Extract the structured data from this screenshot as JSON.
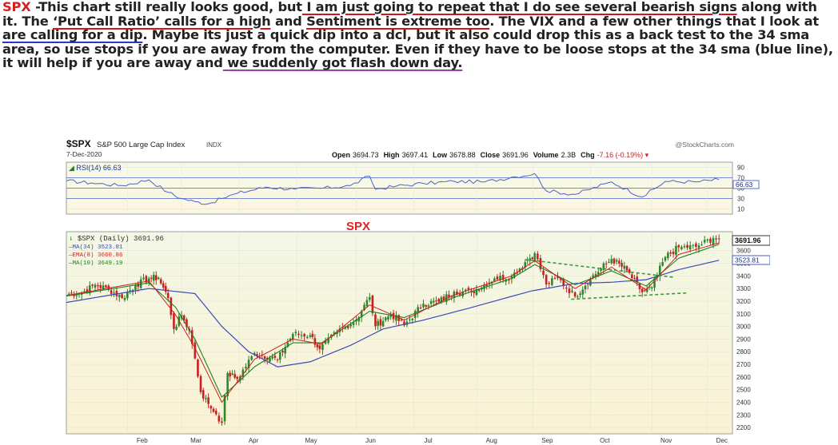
{
  "commentary": {
    "ticker": "SPX",
    "text1": " -This chart still really looks good, but",
    "u1": " I am just going to repeat that I do see several bearish signs",
    "text2": " along with it.  The ",
    "u2": "‘Put Call Ratio’ calls for a high",
    "text3": " and ",
    "u3": "Sentiment is extreme too",
    "text4": ". The VIX and a few other things that I look at ",
    "u4": "are calling for a dip",
    "text5": ".  Maybe its just a quick dip into a dcl, but it also could drop this as a back test to the 34 sma area, so use stops if you are away from the computer. Even if they have to be loose stops at the 34 sma (blue line), it will help if you are away and",
    "u5": " we suddenly got  flash down day."
  },
  "chart_header": {
    "symbol": "$SPX",
    "name": "S&P 500 Large Cap Index",
    "exchange": "INDX",
    "date": "7-Dec-2020",
    "watermark": "@StockCharts.com",
    "open_label": "Open",
    "open": "3694.73",
    "high_label": "High",
    "high": "3697.41",
    "low_label": "Low",
    "low": "3678.88",
    "close_label": "Close",
    "close": "3691.96",
    "volume_label": "Volume",
    "volume": "2.3B",
    "chg_label": "Chg",
    "chg": "-7.16 (-0.19%)"
  },
  "chart_data": [
    {
      "type": "line",
      "panel": "rsi",
      "label": "RSI(14) 66.63",
      "value_tag": "66.63",
      "ylim": [
        0,
        100
      ],
      "yticks": [
        90,
        70,
        50,
        30,
        10
      ],
      "reference_lines": [
        70,
        30
      ],
      "x": [
        "2020-01-02",
        "2020-01-15",
        "2020-01-31",
        "2020-02-14",
        "2020-02-24",
        "2020-03-02",
        "2020-03-09",
        "2020-03-16",
        "2020-03-23",
        "2020-03-31",
        "2020-04-15",
        "2020-04-30",
        "2020-05-15",
        "2020-05-29",
        "2020-06-08",
        "2020-06-11",
        "2020-06-22",
        "2020-07-06",
        "2020-07-22",
        "2020-08-07",
        "2020-08-21",
        "2020-09-02",
        "2020-09-08",
        "2020-09-23",
        "2020-10-12",
        "2020-10-28",
        "2020-11-09",
        "2020-11-25",
        "2020-12-07"
      ],
      "values": [
        64,
        60,
        55,
        66,
        42,
        30,
        24,
        20,
        30,
        40,
        52,
        48,
        50,
        55,
        73,
        48,
        54,
        59,
        63,
        62,
        71,
        78,
        45,
        38,
        62,
        33,
        63,
        62,
        66.63
      ],
      "line_color": "#4a64c8"
    },
    {
      "type": "line",
      "panel": "price",
      "title": "SPX",
      "legend": [
        {
          "name": "$SPX (Daily) 3691.96",
          "color": "#333333"
        },
        {
          "name": "MA(34) 3523.81",
          "color": "#3a4ab8"
        },
        {
          "name": "EMA(8) 3660.86",
          "color": "#d02020"
        },
        {
          "name": "MA(10) 3649.19",
          "color": "#208020"
        }
      ],
      "ylim": [
        2150,
        3750
      ],
      "yticks": [
        3600,
        3500,
        3400,
        3300,
        3200,
        3100,
        3000,
        2900,
        2800,
        2700,
        2600,
        2500,
        2400,
        2300,
        2200
      ],
      "price_tags": [
        "3691.96",
        "3523.81"
      ],
      "x_month_labels": [
        "Feb",
        "Mar",
        "Apr",
        "May",
        "Jun",
        "Jul",
        "Aug",
        "Sep",
        "Oct",
        "Nov",
        "Dec"
      ],
      "x_month_dates": [
        "2020-02-03",
        "2020-03-02",
        "2020-04-01",
        "2020-05-01",
        "2020-06-01",
        "2020-07-01",
        "2020-08-03",
        "2020-09-01",
        "2020-10-01",
        "2020-11-02",
        "2020-12-01"
      ],
      "x_range": [
        "2020-01-02",
        "2020-12-14"
      ],
      "series": [
        {
          "name": "$SPX (Daily) 3691.96",
          "style": "candlestick",
          "x": [
            "2020-01-02",
            "2020-01-10",
            "2020-01-17",
            "2020-01-24",
            "2020-01-31",
            "2020-02-07",
            "2020-02-14",
            "2020-02-19",
            "2020-02-24",
            "2020-02-27",
            "2020-03-02",
            "2020-03-06",
            "2020-03-09",
            "2020-03-12",
            "2020-03-16",
            "2020-03-20",
            "2020-03-23",
            "2020-03-26",
            "2020-03-31",
            "2020-04-09",
            "2020-04-21",
            "2020-04-29",
            "2020-05-08",
            "2020-05-13",
            "2020-05-22",
            "2020-06-01",
            "2020-06-08",
            "2020-06-11",
            "2020-06-19",
            "2020-06-26",
            "2020-07-06",
            "2020-07-14",
            "2020-07-22",
            "2020-07-31",
            "2020-08-12",
            "2020-08-21",
            "2020-08-28",
            "2020-09-02",
            "2020-09-08",
            "2020-09-14",
            "2020-09-23",
            "2020-10-01",
            "2020-10-12",
            "2020-10-20",
            "2020-10-28",
            "2020-11-02",
            "2020-11-09",
            "2020-11-16",
            "2020-11-25",
            "2020-12-04",
            "2020-12-07"
          ],
          "values": [
            3258,
            3265,
            3330,
            3295,
            3225,
            3327,
            3380,
            3386,
            3225,
            2980,
            3090,
            2970,
            2747,
            2480,
            2386,
            2305,
            2237,
            2630,
            2585,
            2790,
            2737,
            2940,
            2930,
            2820,
            2955,
            3055,
            3232,
            3002,
            3098,
            3009,
            3180,
            3197,
            3276,
            3271,
            3380,
            3397,
            3508,
            3580,
            3332,
            3384,
            3237,
            3380,
            3534,
            3443,
            3271,
            3310,
            3550,
            3626,
            3630,
            3699,
            3691.96
          ]
        },
        {
          "name": "MA(34) 3523.81",
          "x": [
            "2020-01-02",
            "2020-02-14",
            "2020-03-09",
            "2020-03-23",
            "2020-04-06",
            "2020-04-21",
            "2020-05-08",
            "2020-05-29",
            "2020-06-15",
            "2020-07-06",
            "2020-07-31",
            "2020-08-31",
            "2020-09-23",
            "2020-10-12",
            "2020-10-30",
            "2020-11-16",
            "2020-12-07"
          ],
          "values": [
            3190,
            3300,
            3260,
            3000,
            2800,
            2680,
            2720,
            2850,
            2980,
            3050,
            3150,
            3280,
            3340,
            3350,
            3370,
            3450,
            3523.81
          ]
        },
        {
          "name": "EMA(8) 3660.86",
          "x": [
            "2020-01-02",
            "2020-02-14",
            "2020-02-28",
            "2020-03-09",
            "2020-03-23",
            "2020-04-09",
            "2020-04-29",
            "2020-05-14",
            "2020-06-08",
            "2020-06-26",
            "2020-07-22",
            "2020-08-21",
            "2020-09-02",
            "2020-09-23",
            "2020-10-12",
            "2020-10-30",
            "2020-11-16",
            "2020-12-07"
          ],
          "values": [
            3245,
            3360,
            3090,
            2830,
            2400,
            2740,
            2900,
            2860,
            3170,
            3050,
            3250,
            3400,
            3520,
            3300,
            3470,
            3290,
            3570,
            3660.86
          ]
        },
        {
          "name": "MA(10) 3649.19",
          "x": [
            "2020-01-02",
            "2020-02-14",
            "2020-02-28",
            "2020-03-09",
            "2020-03-23",
            "2020-04-09",
            "2020-04-29",
            "2020-05-14",
            "2020-06-08",
            "2020-06-26",
            "2020-07-22",
            "2020-08-21",
            "2020-09-02",
            "2020-09-23",
            "2020-10-12",
            "2020-10-30",
            "2020-11-16",
            "2020-12-07"
          ],
          "values": [
            3240,
            3345,
            3150,
            2900,
            2440,
            2680,
            2870,
            2870,
            3120,
            3070,
            3230,
            3380,
            3490,
            3330,
            3440,
            3320,
            3540,
            3649.19
          ]
        },
        {
          "name": "",
          "style": "dashed-trendline-upper",
          "color": "#3a9a3a",
          "x": [
            "2020-08-28",
            "2020-11-13"
          ],
          "values": [
            3530,
            3390
          ]
        },
        {
          "name": "",
          "style": "dashed-trendline-lower",
          "color": "#3a9a3a",
          "x": [
            "2020-09-21",
            "2020-11-20"
          ],
          "values": [
            3215,
            3265
          ]
        }
      ]
    }
  ]
}
